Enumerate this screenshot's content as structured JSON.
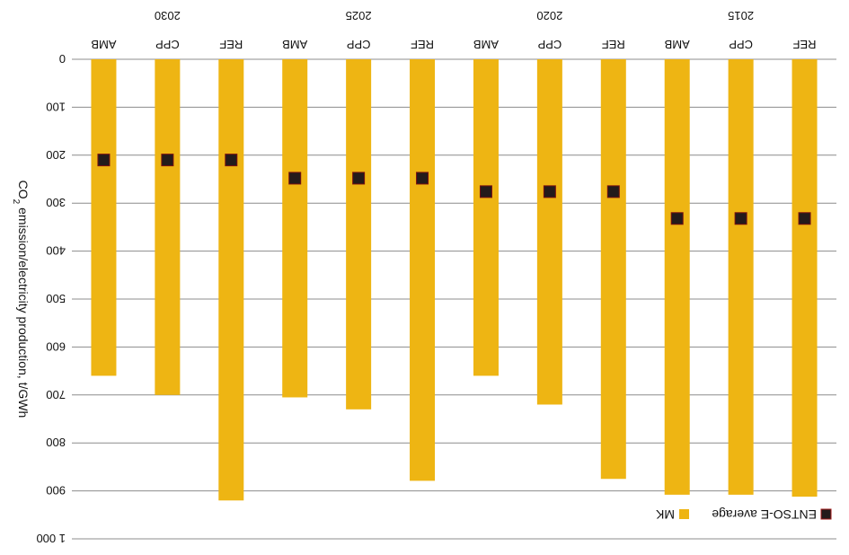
{
  "chart_data": {
    "type": "bar",
    "orientation": "upside-down (image rotated 180 degrees)",
    "ylabel_parts": [
      "CO",
      "2",
      " emission/electricity production, t/GWh"
    ],
    "y_ticks": [
      "0",
      "100",
      "200",
      "300",
      "400",
      "500",
      "600",
      "700",
      "800",
      "900",
      "1 000"
    ],
    "ylim": [
      0,
      1000
    ],
    "groups": [
      {
        "year": "2015",
        "scenarios": [
          "REF",
          "CPP",
          "AMB"
        ]
      },
      {
        "year": "2020",
        "scenarios": [
          "REF",
          "CPP",
          "AMB"
        ]
      },
      {
        "year": "2025",
        "scenarios": [
          "REF",
          "CPP",
          "AMB"
        ]
      },
      {
        "year": "2030",
        "scenarios": [
          "REF",
          "CPP",
          "AMB"
        ]
      }
    ],
    "series": [
      {
        "name": "MK",
        "type": "bar",
        "color": "#eeb513",
        "values": [
          912,
          908,
          908,
          875,
          720,
          660,
          879,
          730,
          705,
          920,
          700,
          660
        ]
      },
      {
        "name": "ENTSO-E average",
        "type": "marker",
        "color": "#231b1b",
        "values": [
          332,
          332,
          332,
          276,
          276,
          276,
          248,
          248,
          248,
          210,
          210,
          210
        ]
      }
    ],
    "legend": {
      "placement": "bottom-right"
    },
    "grid": true
  }
}
